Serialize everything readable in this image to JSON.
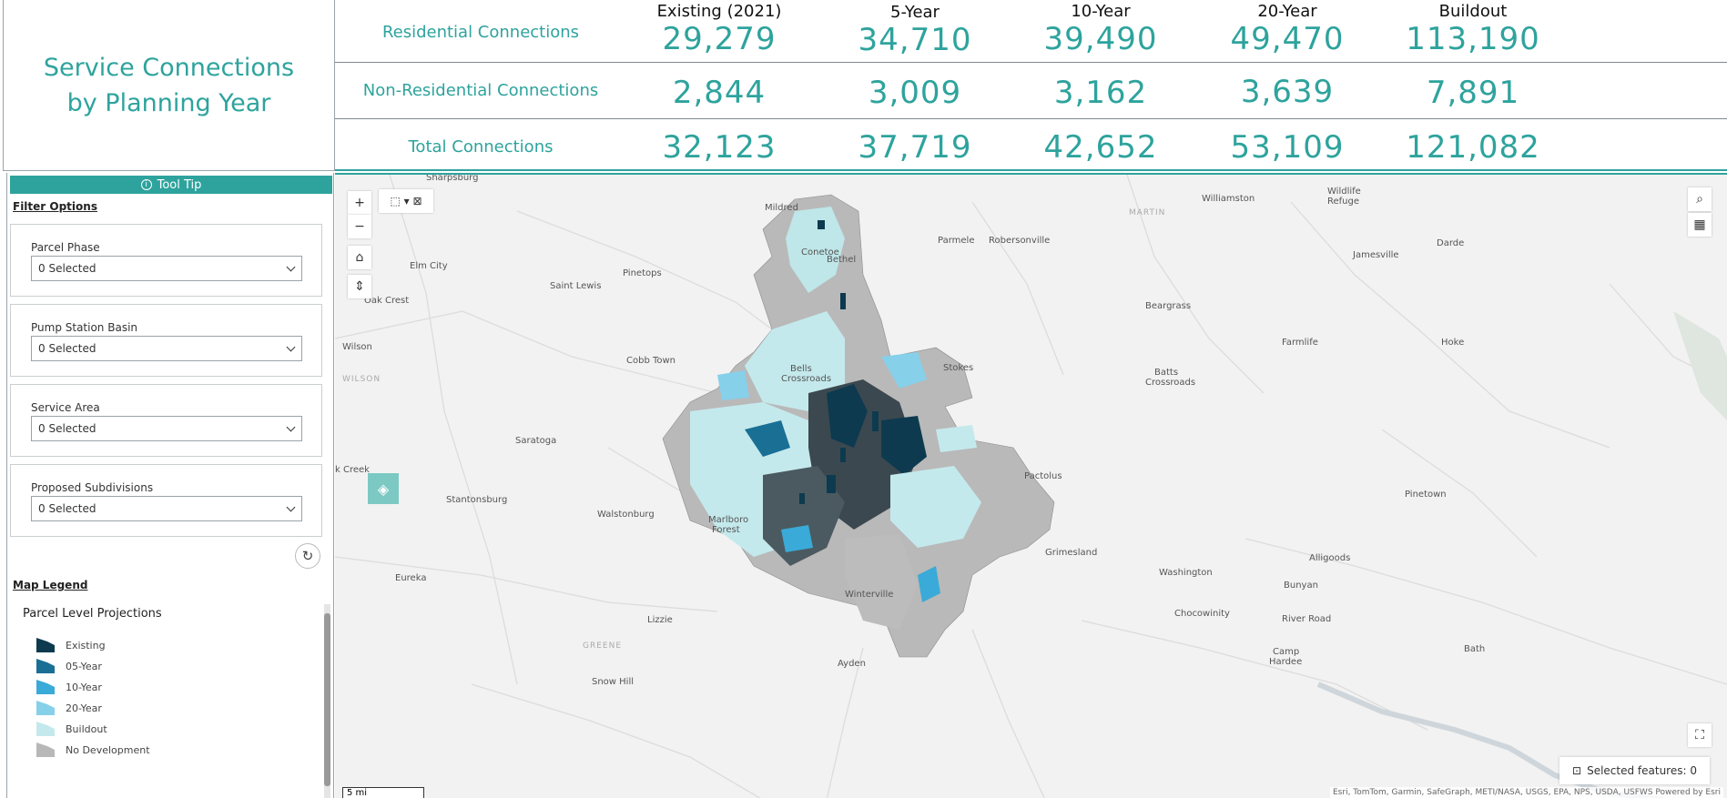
{
  "title": {
    "line1": "Service Connections",
    "line2": "by Planning Year"
  },
  "stats": {
    "columns": [
      "Existing (2021)",
      "5-Year",
      "10-Year",
      "20-Year",
      "Buildout"
    ],
    "rows": [
      {
        "label": "Residential Connections",
        "values": [
          "29,279",
          "34,710",
          "39,490",
          "49,470",
          "113,190"
        ]
      },
      {
        "label": "Non-Residential Connections",
        "values": [
          "2,844",
          "3,009",
          "3,162",
          "3,639",
          "7,891"
        ]
      },
      {
        "label": "Total Connections",
        "values": [
          "32,123",
          "37,719",
          "42,652",
          "53,109",
          "121,082"
        ]
      }
    ]
  },
  "sidebar": {
    "tooltip_label": "Tool Tip",
    "filter_heading": "Filter Options",
    "filters": [
      {
        "label": "Parcel Phase",
        "value": "0 Selected"
      },
      {
        "label": "Pump Station Basin",
        "value": "0 Selected"
      },
      {
        "label": "Service Area",
        "value": "0 Selected"
      },
      {
        "label": "Proposed Subdivisions",
        "value": "0 Selected"
      }
    ],
    "legend_heading": "Map Legend",
    "legend": {
      "title": "Parcel Level Projections",
      "items": [
        {
          "label": "Existing",
          "color": "#0d3a4f"
        },
        {
          "label": "05-Year",
          "color": "#1a6f95"
        },
        {
          "label": "10-Year",
          "color": "#3aaad8"
        },
        {
          "label": "20-Year",
          "color": "#86d0ea"
        },
        {
          "label": "Buildout",
          "color": "#c4e9ec"
        },
        {
          "label": "No Development",
          "color": "#b8b8b8"
        }
      ]
    }
  },
  "map": {
    "zoom_in": "+",
    "zoom_out": "−",
    "selected_features": "Selected features: 0",
    "scale": "5 mi",
    "attribution": "Esri, TomTom, Garmin, SafeGraph, METI/NASA, USGS, EPA, NPS, USDA, USFWS   Powered by Esri",
    "places": [
      {
        "name": "Sharpsburg"
      },
      {
        "name": "Mildred"
      },
      {
        "name": "Williamston"
      },
      {
        "name": "MARTIN"
      },
      {
        "name": "Wildlife"
      },
      {
        "name": "Refuge"
      },
      {
        "name": "Elm City"
      },
      {
        "name": "Conetoe"
      },
      {
        "name": "Parmele"
      },
      {
        "name": "Robersonville"
      },
      {
        "name": "Jamesville"
      },
      {
        "name": "Darde"
      },
      {
        "name": "Bethel"
      },
      {
        "name": "Saint Lewis"
      },
      {
        "name": "Pinetops"
      },
      {
        "name": "Oak Crest"
      },
      {
        "name": "Beargrass"
      },
      {
        "name": "Wilson"
      },
      {
        "name": "WILSON"
      },
      {
        "name": "Farmlife"
      },
      {
        "name": "Hoke"
      },
      {
        "name": "Cobb Town"
      },
      {
        "name": "Bells"
      },
      {
        "name": "Crossroads"
      },
      {
        "name": "Stokes"
      },
      {
        "name": "Batts"
      },
      {
        "name": "Crossroads"
      },
      {
        "name": "Saratoga"
      },
      {
        "name": "k Creek"
      },
      {
        "name": "Pactolus"
      },
      {
        "name": "Stantonsburg"
      },
      {
        "name": "Walstonburg"
      },
      {
        "name": "Pinetown"
      },
      {
        "name": "Marlboro"
      },
      {
        "name": "Forest"
      },
      {
        "name": "Grimesland"
      },
      {
        "name": "Alligoods"
      },
      {
        "name": "Eureka"
      },
      {
        "name": "Washington"
      },
      {
        "name": "Bunyan"
      },
      {
        "name": "Winterville"
      },
      {
        "name": "Lizzie"
      },
      {
        "name": "Chocowinity"
      },
      {
        "name": "River Road"
      },
      {
        "name": "GREENE"
      },
      {
        "name": "Camp"
      },
      {
        "name": "Hardee"
      },
      {
        "name": "Snow Hill"
      },
      {
        "name": "Ayden"
      },
      {
        "name": "Bath"
      }
    ]
  }
}
